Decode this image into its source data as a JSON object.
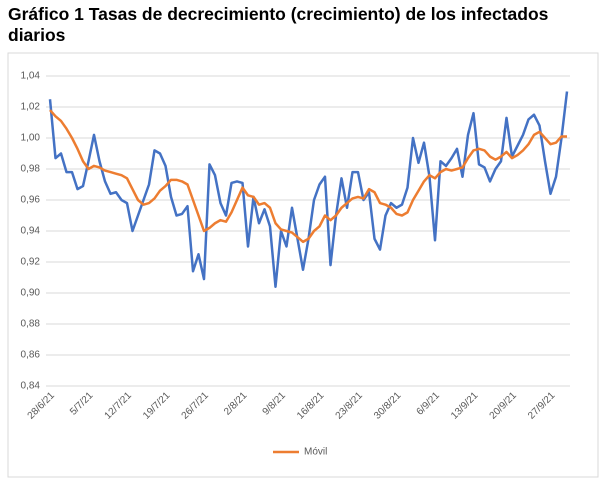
{
  "chart_data": {
    "type": "line",
    "title": "Gráfico 1 Tasas de decrecimiento (crecimiento) de los infectados diarios",
    "categories": [
      "28/6/21",
      null,
      null,
      null,
      null,
      null,
      null,
      "5/7/21",
      null,
      null,
      null,
      null,
      null,
      null,
      "12/7/21",
      null,
      null,
      null,
      null,
      null,
      null,
      "19/7/21",
      null,
      null,
      null,
      null,
      null,
      null,
      "26/7/21",
      null,
      null,
      null,
      null,
      null,
      null,
      "2/8/21",
      null,
      null,
      null,
      null,
      null,
      null,
      "9/8/21",
      null,
      null,
      null,
      null,
      null,
      null,
      "16/8/21",
      null,
      null,
      null,
      null,
      null,
      null,
      "23/8/21",
      null,
      null,
      null,
      null,
      null,
      null,
      "30/8/21",
      null,
      null,
      null,
      null,
      null,
      null,
      "6/9/21",
      null,
      null,
      null,
      null,
      null,
      null,
      "13/9/21",
      null,
      null,
      null,
      null,
      null,
      null,
      "20/9/21",
      null,
      null,
      null,
      null,
      null,
      null,
      "27/9/21",
      null,
      null,
      null
    ],
    "series": [
      {
        "color": "#4472c4",
        "values": [
          1.025,
          0.987,
          0.99,
          0.978,
          0.978,
          0.967,
          0.969,
          0.985,
          1.002,
          0.985,
          0.972,
          0.964,
          0.965,
          0.96,
          0.958,
          0.94,
          0.95,
          0.96,
          0.97,
          0.992,
          0.99,
          0.982,
          0.962,
          0.95,
          0.951,
          0.956,
          0.914,
          0.925,
          0.909,
          0.983,
          0.976,
          0.958,
          0.95,
          0.971,
          0.972,
          0.971,
          0.93,
          0.962,
          0.945,
          0.954,
          0.943,
          0.904,
          0.94,
          0.93,
          0.955,
          0.935,
          0.915,
          0.935,
          0.96,
          0.97,
          0.975,
          0.918,
          0.95,
          0.974,
          0.955,
          0.978,
          0.978,
          0.96,
          0.965,
          0.935,
          0.928,
          0.95,
          0.958,
          0.955,
          0.957,
          0.968,
          1.0,
          0.984,
          0.997,
          0.975,
          0.934,
          0.985,
          0.982,
          0.987,
          0.993,
          0.975,
          1.002,
          1.016,
          0.983,
          0.981,
          0.972,
          0.98,
          0.985,
          1.013,
          0.988,
          0.995,
          1.002,
          1.012,
          1.015,
          1.008,
          0.985,
          0.964,
          0.975,
          1.0,
          1.03
        ]
      },
      {
        "name": "Móvil",
        "color": "#ed7d31",
        "values": [
          1.018,
          1.014,
          1.011,
          1.006,
          1.0,
          0.993,
          0.985,
          0.98,
          0.982,
          0.981,
          0.979,
          0.978,
          0.977,
          0.976,
          0.974,
          0.967,
          0.96,
          0.957,
          0.958,
          0.961,
          0.966,
          0.969,
          0.973,
          0.973,
          0.972,
          0.97,
          0.96,
          0.95,
          0.94,
          0.942,
          0.945,
          0.947,
          0.946,
          0.952,
          0.96,
          0.968,
          0.963,
          0.962,
          0.957,
          0.958,
          0.955,
          0.945,
          0.941,
          0.94,
          0.939,
          0.936,
          0.933,
          0.935,
          0.94,
          0.943,
          0.95,
          0.947,
          0.95,
          0.955,
          0.958,
          0.961,
          0.962,
          0.961,
          0.967,
          0.965,
          0.958,
          0.957,
          0.955,
          0.951,
          0.95,
          0.952,
          0.96,
          0.966,
          0.972,
          0.976,
          0.974,
          0.978,
          0.98,
          0.979,
          0.98,
          0.981,
          0.987,
          0.992,
          0.993,
          0.992,
          0.988,
          0.986,
          0.988,
          0.991,
          0.987,
          0.989,
          0.992,
          0.996,
          1.002,
          1.004,
          1.0,
          0.996,
          0.997,
          1.001,
          1.001
        ]
      }
    ],
    "ylim": [
      0.84,
      1.04
    ],
    "yticks": [
      {
        "value": 0.84,
        "label": "0,84"
      },
      {
        "value": 0.86,
        "label": "0,86"
      },
      {
        "value": 0.88,
        "label": "0,88"
      },
      {
        "value": 0.9,
        "label": "0,90"
      },
      {
        "value": 0.92,
        "label": "0,92"
      },
      {
        "value": 0.94,
        "label": "0,94"
      },
      {
        "value": 0.96,
        "label": "0,96"
      },
      {
        "value": 0.98,
        "label": "0,98"
      },
      {
        "value": 1.0,
        "label": "1,00"
      },
      {
        "value": 1.02,
        "label": "1,02"
      },
      {
        "value": 1.04,
        "label": "1,04"
      }
    ],
    "grid": true,
    "legend": "bottom"
  }
}
